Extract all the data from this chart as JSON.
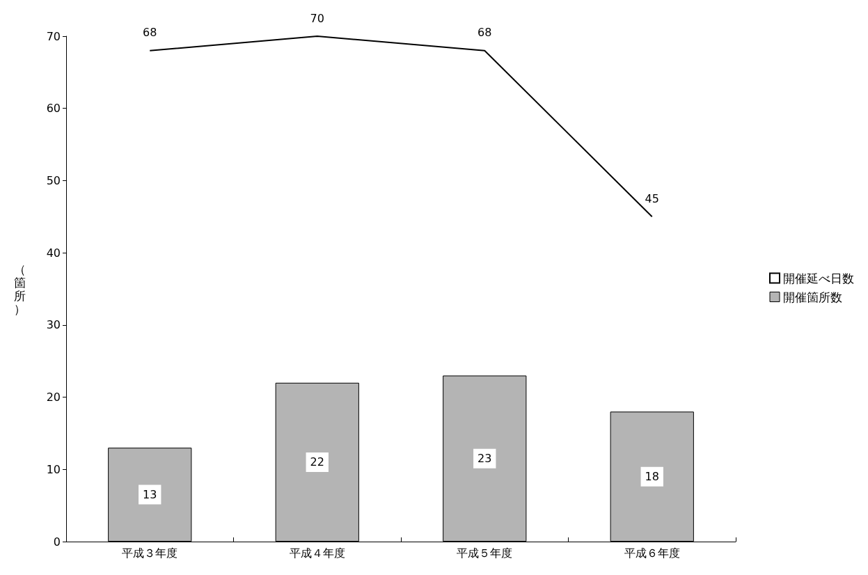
{
  "chart_data": {
    "type": "bar",
    "ylabel": "（箇所）",
    "categories": [
      "平成３年度",
      "平成４年度",
      "平成５年度",
      "平成６年度"
    ],
    "series": [
      {
        "name": "開催延べ日数",
        "type": "line",
        "color": "#000000",
        "values": [
          68,
          70,
          68,
          45
        ]
      },
      {
        "name": "開催箇所数",
        "color": "#b4b4b4",
        "values": [
          13,
          22,
          23,
          18
        ]
      }
    ],
    "ylim": [
      0,
      70
    ],
    "yticks": [
      0,
      10,
      20,
      30,
      40,
      50,
      60,
      70
    ],
    "grid": false,
    "legend": "right",
    "marker": "none",
    "line_style": "solid",
    "data_labels": true
  }
}
